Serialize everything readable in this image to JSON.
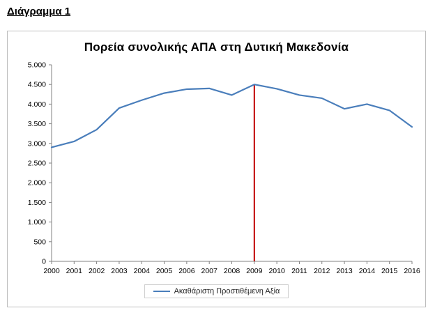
{
  "page": {
    "heading": "Διάγραμμα 1"
  },
  "chart_data": {
    "type": "line",
    "title": "Πορεία συνολικής ΑΠΑ στη Δυτική Μακεδονία",
    "xlabel": "",
    "ylabel": "",
    "categories": [
      "2000",
      "2001",
      "2002",
      "2003",
      "2004",
      "2005",
      "2006",
      "2007",
      "2008",
      "2009",
      "2010",
      "2011",
      "2012",
      "2013",
      "2014",
      "2015",
      "2016"
    ],
    "series": [
      {
        "name": "Ακαθάριστη Προστιθέμενη Αξία",
        "color": "#4a7ebb",
        "values": [
          2900,
          3050,
          3350,
          3900,
          4100,
          4280,
          4380,
          4400,
          4230,
          4500,
          4390,
          4230,
          4150,
          3880,
          4000,
          3840,
          3420
        ]
      }
    ],
    "ylim": [
      0,
      5000
    ],
    "ytick_values": [
      0,
      500,
      1000,
      1500,
      2000,
      2500,
      3000,
      3500,
      4000,
      4500,
      5000
    ],
    "ytick_labels": [
      "0",
      "500",
      "1.000",
      "1.500",
      "2.000",
      "2.500",
      "3.000",
      "3.500",
      "4.000",
      "4.500",
      "5.000"
    ],
    "grid": false,
    "legend_position": "bottom",
    "annotation": {
      "type": "vline",
      "category": "2009",
      "value_top": 4500,
      "color": "#c00000"
    },
    "axis_color": "#808080",
    "label_color": "#000000"
  }
}
